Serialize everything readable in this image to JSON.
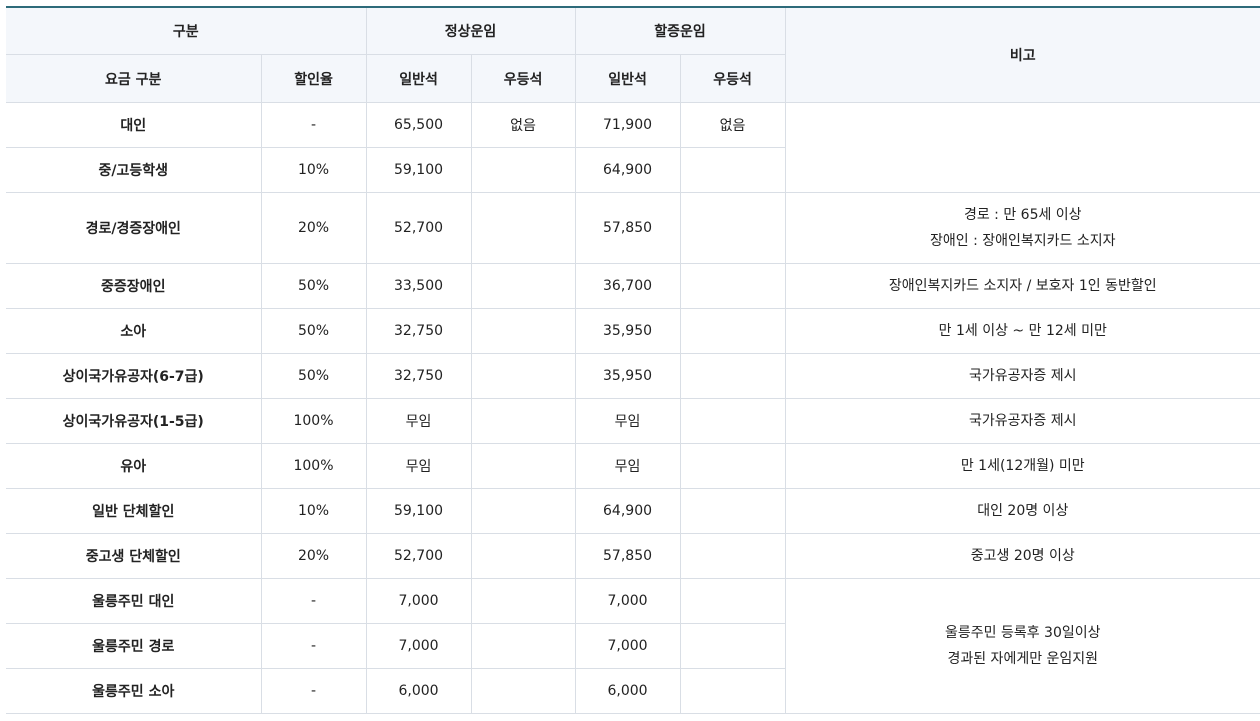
{
  "header": {
    "category": "구분",
    "normal_fare": "정상운임",
    "surcharge_fare": "할증운임",
    "remarks": "비고",
    "fare_type": "요금 구분",
    "discount_rate": "할인율",
    "normal_general": "일반석",
    "normal_premium": "우등석",
    "surcharge_general": "일반석",
    "surcharge_premium": "우등석"
  },
  "rows": [
    {
      "label": "대인",
      "rate": "-",
      "n_gen": "65,500",
      "n_prem": "없음",
      "s_gen": "71,900",
      "s_prem": "없음"
    },
    {
      "label": "중/고등학생",
      "rate": "10%",
      "n_gen": "59,100",
      "n_prem": "",
      "s_gen": "64,900",
      "s_prem": ""
    },
    {
      "label": "경로/경증장애인",
      "rate": "20%",
      "n_gen": "52,700",
      "n_prem": "",
      "s_gen": "57,850",
      "s_prem": ""
    },
    {
      "label": "중증장애인",
      "rate": "50%",
      "n_gen": "33,500",
      "n_prem": "",
      "s_gen": "36,700",
      "s_prem": ""
    },
    {
      "label": "소아",
      "rate": "50%",
      "n_gen": "32,750",
      "n_prem": "",
      "s_gen": "35,950",
      "s_prem": ""
    },
    {
      "label": "상이국가유공자(6-7급)",
      "rate": "50%",
      "n_gen": "32,750",
      "n_prem": "",
      "s_gen": "35,950",
      "s_prem": ""
    },
    {
      "label": "상이국가유공자(1-5급)",
      "rate": "100%",
      "n_gen": "무임",
      "n_prem": "",
      "s_gen": "무임",
      "s_prem": ""
    },
    {
      "label": "유아",
      "rate": "100%",
      "n_gen": "무임",
      "n_prem": "",
      "s_gen": "무임",
      "s_prem": ""
    },
    {
      "label": "일반 단체할인",
      "rate": "10%",
      "n_gen": "59,100",
      "n_prem": "",
      "s_gen": "64,900",
      "s_prem": ""
    },
    {
      "label": "중고생 단체할인",
      "rate": "20%",
      "n_gen": "52,700",
      "n_prem": "",
      "s_gen": "57,850",
      "s_prem": ""
    },
    {
      "label": "울릉주민 대인",
      "rate": "-",
      "n_gen": "7,000",
      "n_prem": "",
      "s_gen": "7,000",
      "s_prem": ""
    },
    {
      "label": "울릉주민 경로",
      "rate": "-",
      "n_gen": "7,000",
      "n_prem": "",
      "s_gen": "7,000",
      "s_prem": ""
    },
    {
      "label": "울릉주민 소아",
      "rate": "-",
      "n_gen": "6,000",
      "n_prem": "",
      "s_gen": "6,000",
      "s_prem": ""
    }
  ],
  "notes": {
    "senior_1": "경로 : 만 65세 이상",
    "senior_2": "장애인 : 장애인복지카드 소지자",
    "severe": "장애인복지카드 소지자 / 보호자 1인 동반할인",
    "child": "만 1세 이상 ~ 만 12세 미만",
    "veteran_67": "국가유공자증 제시",
    "veteran_15": "국가유공자증 제시",
    "infant": "만 1세(12개월) 미만",
    "group_general": "대인 20명 이상",
    "group_student": "중고생 20명 이상",
    "resident_1": "울릉주민 등록후 30일이상",
    "resident_2": "경과된 자에게만 운임지원"
  }
}
